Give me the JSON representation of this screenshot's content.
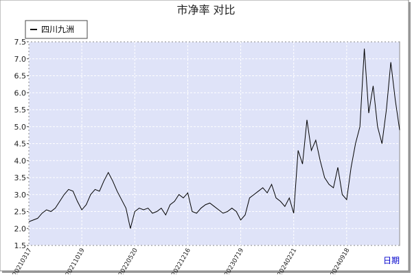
{
  "chart_data": {
    "type": "line",
    "title": "市净率  对比",
    "x_label": "日期",
    "categories": [
      "20210317",
      null,
      null,
      null,
      null,
      null,
      null,
      null,
      null,
      null,
      null,
      null,
      "20211019",
      null,
      null,
      null,
      null,
      null,
      null,
      null,
      null,
      null,
      null,
      null,
      "20220520",
      null,
      null,
      null,
      null,
      null,
      null,
      null,
      null,
      null,
      null,
      null,
      "20221216",
      null,
      null,
      null,
      null,
      null,
      null,
      null,
      null,
      null,
      null,
      null,
      "20230719",
      null,
      null,
      null,
      null,
      null,
      null,
      null,
      null,
      null,
      null,
      null,
      "20240221",
      null,
      null,
      null,
      null,
      null,
      null,
      null,
      null,
      null,
      null,
      null,
      "20240918",
      null,
      null,
      null,
      null,
      null,
      null,
      null,
      null,
      null,
      null,
      null,
      null
    ],
    "series": [
      {
        "name": "四川九洲",
        "color": "#000000",
        "values": [
          2.2,
          2.25,
          2.3,
          2.45,
          2.55,
          2.5,
          2.6,
          2.8,
          3.0,
          3.15,
          3.1,
          2.8,
          2.55,
          2.7,
          3.0,
          3.15,
          3.1,
          3.4,
          3.65,
          3.4,
          3.1,
          2.85,
          2.6,
          2.0,
          2.5,
          2.6,
          2.55,
          2.6,
          2.45,
          2.5,
          2.6,
          2.4,
          2.7,
          2.8,
          3.0,
          2.9,
          3.05,
          2.5,
          2.45,
          2.6,
          2.7,
          2.75,
          2.65,
          2.55,
          2.45,
          2.5,
          2.6,
          2.5,
          2.25,
          2.4,
          2.9,
          3.0,
          3.1,
          3.2,
          3.05,
          3.3,
          2.9,
          2.8,
          2.65,
          2.9,
          2.45,
          4.3,
          3.9,
          5.2,
          4.3,
          4.6,
          4.0,
          3.5,
          3.3,
          3.2,
          3.8,
          3.0,
          2.85,
          3.8,
          4.5,
          5.0,
          7.3,
          5.4,
          6.2,
          5.0,
          4.5,
          5.5,
          6.9,
          5.8,
          4.9
        ]
      }
    ],
    "ylim": [
      1.5,
      7.5
    ],
    "yticks": [
      1.5,
      {
        "value": 2,
        "label": "2.0"
      },
      2.5,
      {
        "value": 3,
        "label": "3.0"
      },
      3.5,
      {
        "value": 4,
        "label": "4.0"
      },
      4.5,
      {
        "value": 5,
        "label": "5.0"
      },
      5.5,
      {
        "value": 6,
        "label": "6.0"
      },
      6.5,
      {
        "value": 7,
        "label": "7.0"
      },
      7.5
    ],
    "grid": true,
    "legend": "top-left"
  }
}
